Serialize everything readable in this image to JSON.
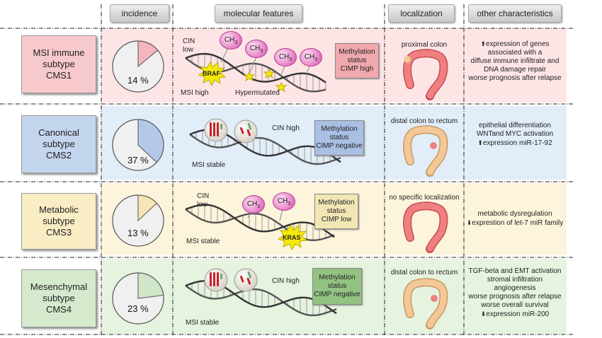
{
  "headers": {
    "incidence": "incidence",
    "molecular": "molecular features",
    "localization": "localization",
    "other": "other characteristics"
  },
  "ch3": "CH",
  "ch3_sub": "3",
  "rows": [
    {
      "l1": "MSI immune",
      "l2": "subtype",
      "l3": "CMS1",
      "pct": "14 %",
      "pct_value": 14,
      "methyl": [
        "Methylation",
        "status",
        "CIMP high"
      ],
      "labels": {
        "cin": "CIN",
        "low": "low",
        "braf": "BRAF",
        "msi": "MSI high",
        "hyper": "Hypermutated"
      },
      "loc": "proximal colon",
      "other": [
        "expression of genes",
        "associated with a",
        "diffuse immune infiltrate  and",
        "DNA damage repair",
        "worse prognosis after relapse"
      ]
    },
    {
      "l1": "Canonical",
      "l2": "subtype",
      "l3": "CMS2",
      "pct": "37 %",
      "pct_value": 37,
      "methyl": [
        "Methylation",
        "status",
        "CIMP negative"
      ],
      "labels": {
        "cinhigh": "CIN high",
        "msi": "MSI stable"
      },
      "loc": "distal colon to rectum",
      "other": [
        "epithelial differentiation",
        "WNTand MYC activation",
        "expression miR-17-92"
      ]
    },
    {
      "l1": "Metabolic",
      "l2": "subtype",
      "l3": "CMS3",
      "pct": "13 %",
      "pct_value": 13,
      "methyl": [
        "Methylation",
        "status",
        "CIMP low"
      ],
      "labels": {
        "cin": "CIN",
        "low": "low",
        "kras": "KRAS",
        "msi": "MSI stable"
      },
      "loc": "no specific localization",
      "other": [
        "metabolic dysregulation",
        "exprestion of let-7 miR family"
      ]
    },
    {
      "l1": "Mesenchymal",
      "l2": "subtype",
      "l3": "CMS4",
      "pct": "23 %",
      "pct_value": 23,
      "methyl": [
        "Methylation",
        "status",
        "CIMP negative"
      ],
      "labels": {
        "cinhigh": "CIN high",
        "msi": "MSI stable"
      },
      "loc": "distal colon to rectum",
      "other": [
        "TGF-beta and EMT activation",
        "stromal infiltration",
        "angiogenesis",
        "worse prognosis after relapse",
        "worse overall survival",
        "expression miR-200"
      ]
    }
  ],
  "colors": {
    "cms1": "#f7c9cc",
    "cms2": "#c4d5ee",
    "cms3": "#f9edc4",
    "cms4": "#d5eacd",
    "bg1": "#fde5e6",
    "bg2": "#e1edf8",
    "bg3": "#fdf4dc",
    "bg4": "#e5f3df",
    "pie1": "#f2b6bc",
    "pie2": "#b4c8e8",
    "pie3": "#f6e6b4",
    "pie4": "#cfe6c8"
  }
}
